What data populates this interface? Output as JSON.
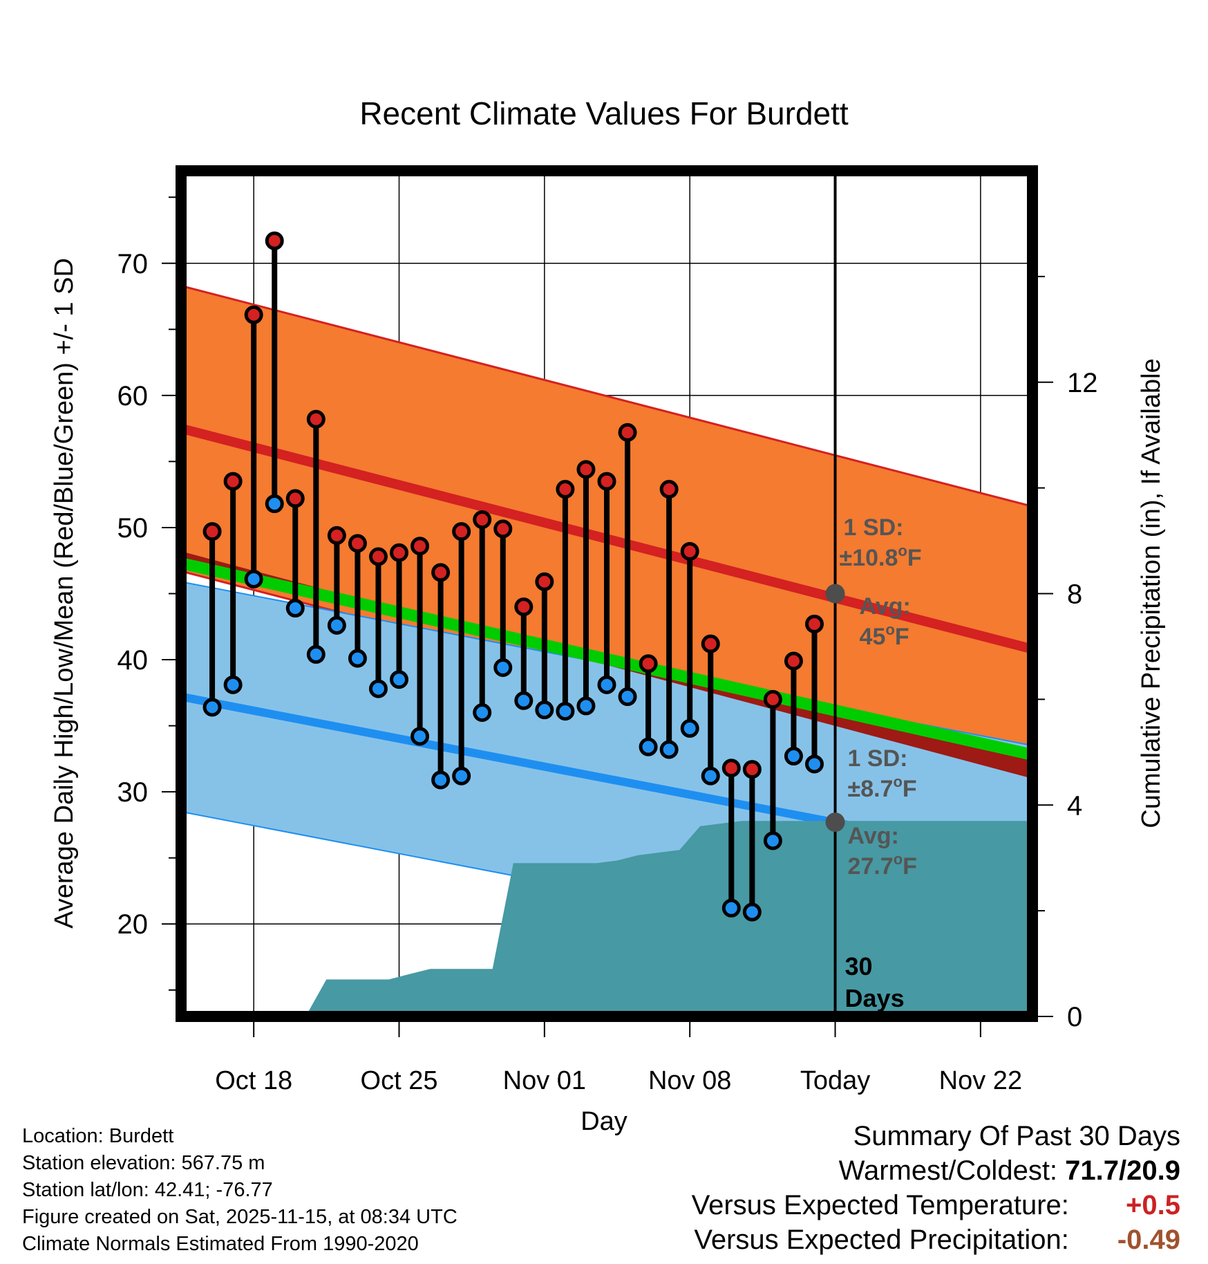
{
  "chart_data": {
    "type": "line",
    "title": "Recent Climate Values For Burdett",
    "xlabel": "Day",
    "ylabel": "Average Daily High/Low/Mean (Red/Blue/Green) +/- 1 SD",
    "ylabel_right": "Cumulative Precipitation (in), If Available",
    "x_range": [
      -3.5,
      37.5
    ],
    "ylim": [
      13,
      77
    ],
    "ylim_right": [
      0,
      16
    ],
    "x_ticks": [
      {
        "x": 0,
        "label": "Oct 18"
      },
      {
        "x": 7,
        "label": "Oct 25"
      },
      {
        "x": 14,
        "label": "Nov 01"
      },
      {
        "x": 21,
        "label": "Nov 08"
      },
      {
        "x": 28,
        "label": "Today"
      },
      {
        "x": 35,
        "label": "Nov 22"
      }
    ],
    "y_ticks": [
      20,
      30,
      40,
      50,
      60,
      70
    ],
    "y_ticks_right": [
      0,
      4,
      8,
      12
    ],
    "days": [
      -2,
      -1,
      0,
      1,
      2,
      3,
      4,
      5,
      6,
      7,
      8,
      9,
      10,
      11,
      12,
      13,
      14,
      15,
      16,
      17,
      18,
      19,
      20,
      21,
      22,
      23,
      24,
      25,
      26,
      27
    ],
    "highs": [
      49.7,
      53.5,
      66.1,
      71.7,
      52.2,
      58.2,
      49.4,
      48.8,
      47.8,
      48.1,
      48.6,
      46.6,
      49.7,
      50.6,
      49.9,
      44.0,
      45.9,
      52.9,
      54.4,
      53.5,
      57.2,
      39.7,
      52.9,
      48.2,
      41.2,
      31.8,
      31.7,
      37.0,
      39.9,
      42.7
    ],
    "lows": [
      36.4,
      38.1,
      46.1,
      51.8,
      43.9,
      40.4,
      42.6,
      40.1,
      37.8,
      38.5,
      34.2,
      30.9,
      31.2,
      36.0,
      39.4,
      36.9,
      36.2,
      36.1,
      36.5,
      38.1,
      37.2,
      33.4,
      33.2,
      34.8,
      31.2,
      21.2,
      20.9,
      26.3,
      32.7,
      32.1
    ],
    "normal_high": {
      "start": 57.5,
      "end": 40.8,
      "sd": 10.8
    },
    "normal_low": {
      "start": 37.2,
      "end": 24.8,
      "sd": 8.7
    },
    "normal_mean": {
      "start": 47.3,
      "end": 32.8
    },
    "observed_mean_trend": {
      "start": 48.2,
      "end": 31.0
    },
    "precip_cumulative": {
      "x": [
        -3.5,
        -2.5,
        -1.5,
        -0.5,
        0.5,
        1.5,
        2.5,
        3.5,
        4.5,
        5.5,
        6.5,
        7.5,
        8.5,
        9.5,
        10.5,
        11.5,
        12.5,
        13.5,
        14.5,
        15.5,
        16.5,
        17.5,
        18.5,
        19.5,
        20.5,
        21.5,
        22.5,
        23.5,
        24.5,
        25.5,
        26.5,
        27.5,
        28.5,
        29.5,
        30.5,
        31.5,
        32.5,
        33.5,
        34.5,
        35.5,
        36.5,
        37.5
      ],
      "values": [
        0,
        0,
        0,
        0,
        0,
        0,
        0,
        0.7,
        0.7,
        0.7,
        0.7,
        0.8,
        0.9,
        0.9,
        0.9,
        0.9,
        2.9,
        2.9,
        2.9,
        2.9,
        2.9,
        2.95,
        3.05,
        3.1,
        3.15,
        3.6,
        3.65,
        3.7,
        3.7,
        3.7,
        3.7,
        3.7,
        3.7,
        3.7,
        3.7,
        3.7,
        3.7,
        3.7,
        3.7,
        3.7,
        3.7,
        3.7
      ]
    },
    "annotations": {
      "high_sd": {
        "line1": "1 SD:",
        "line2": "±10.8",
        "unit": "F"
      },
      "high_avg": {
        "line1": "Avg:",
        "line2": "45",
        "unit": "F",
        "value": 45
      },
      "low_sd": {
        "line1": "1 SD:",
        "line2": "±8.7",
        "unit": "F"
      },
      "low_avg": {
        "line1": "Avg:",
        "line2": "27.7",
        "unit": "F",
        "value": 27.7
      },
      "days_line1": "30",
      "days_line2": "Days",
      "degree_symbol": "o"
    },
    "colors": {
      "high_band": "#f47b30",
      "high_line": "#d42121",
      "low_band": "#86c2e8",
      "low_line": "#1e8ff0",
      "mean_line": "#00cc00",
      "mean_dev": "#9e1a14",
      "precip": "#4799a3",
      "high_marker": "#d42121",
      "low_marker": "#1e8ff0",
      "annotation": "#555555"
    }
  },
  "info": {
    "location": "Location: Burdett",
    "elevation": "Station elevation: 567.75 m",
    "latlon": "Station lat/lon: 42.41; -76.77",
    "created": "Figure created on Sat, 2025-11-15, at 08:34 UTC",
    "normals": "Climate Normals Estimated From 1990-2020"
  },
  "summary": {
    "title": "Summary Of Past 30 Days",
    "warm_cold_label": "Warmest/Coldest:",
    "warm_cold_value": "71.7/20.9",
    "temp_label": "Versus Expected Temperature:",
    "temp_value": "+0.5",
    "temp_color": "#cc2222",
    "precip_label": "Versus Expected Precipitation:",
    "precip_value": "-0.49",
    "precip_color": "#a0522d"
  }
}
